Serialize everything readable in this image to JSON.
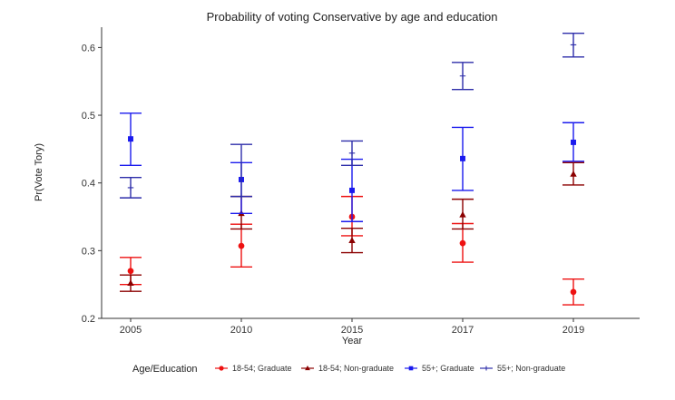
{
  "chart_data": {
    "type": "errorbar",
    "title": "Probability of voting Conservative by age and education",
    "xlabel": "Year",
    "ylabel": "Pr(Vote Tory)",
    "categories": [
      "2005",
      "2010",
      "2015",
      "2017",
      "2019"
    ],
    "ylim": [
      0.2,
      0.63
    ],
    "yticks": [
      0.2,
      0.3,
      0.4,
      0.5,
      0.6
    ],
    "ytick_labels": [
      "0.2",
      "0.3",
      "0.4",
      "0.5",
      "0.6"
    ],
    "grid": false,
    "legend": {
      "title": "Age/Education",
      "position": "bottom"
    },
    "series": [
      {
        "name": "18-54; Graduate",
        "marker": "circle",
        "color": "#ee1111",
        "values": [
          0.27,
          0.307,
          0.35,
          0.311,
          0.239
        ],
        "lower": [
          0.25,
          0.276,
          0.322,
          0.283,
          0.22
        ],
        "upper": [
          0.29,
          0.339,
          0.38,
          0.34,
          0.258
        ]
      },
      {
        "name": "18-54; Non-graduate",
        "marker": "triangle",
        "color": "#8b0000",
        "values": [
          0.252,
          0.355,
          0.315,
          0.353,
          0.413
        ],
        "lower": [
          0.24,
          0.332,
          0.297,
          0.332,
          0.397
        ],
        "upper": [
          0.264,
          0.38,
          0.333,
          0.376,
          0.43
        ]
      },
      {
        "name": "55+; Graduate",
        "marker": "square",
        "color": "#1a1aee",
        "values": [
          0.465,
          0.405,
          0.389,
          0.436,
          0.46
        ],
        "lower": [
          0.426,
          0.355,
          0.343,
          0.389,
          0.432
        ],
        "upper": [
          0.503,
          0.43,
          0.435,
          0.482,
          0.489
        ]
      },
      {
        "name": "55+; Non-graduate",
        "marker": "plus",
        "color": "#2e2eaa",
        "values": [
          0.393,
          0.38,
          0.444,
          0.558,
          0.604
        ],
        "lower": [
          0.378,
          0.38,
          0.426,
          0.538,
          0.586
        ],
        "upper": [
          0.408,
          0.457,
          0.462,
          0.578,
          0.621
        ]
      }
    ]
  }
}
